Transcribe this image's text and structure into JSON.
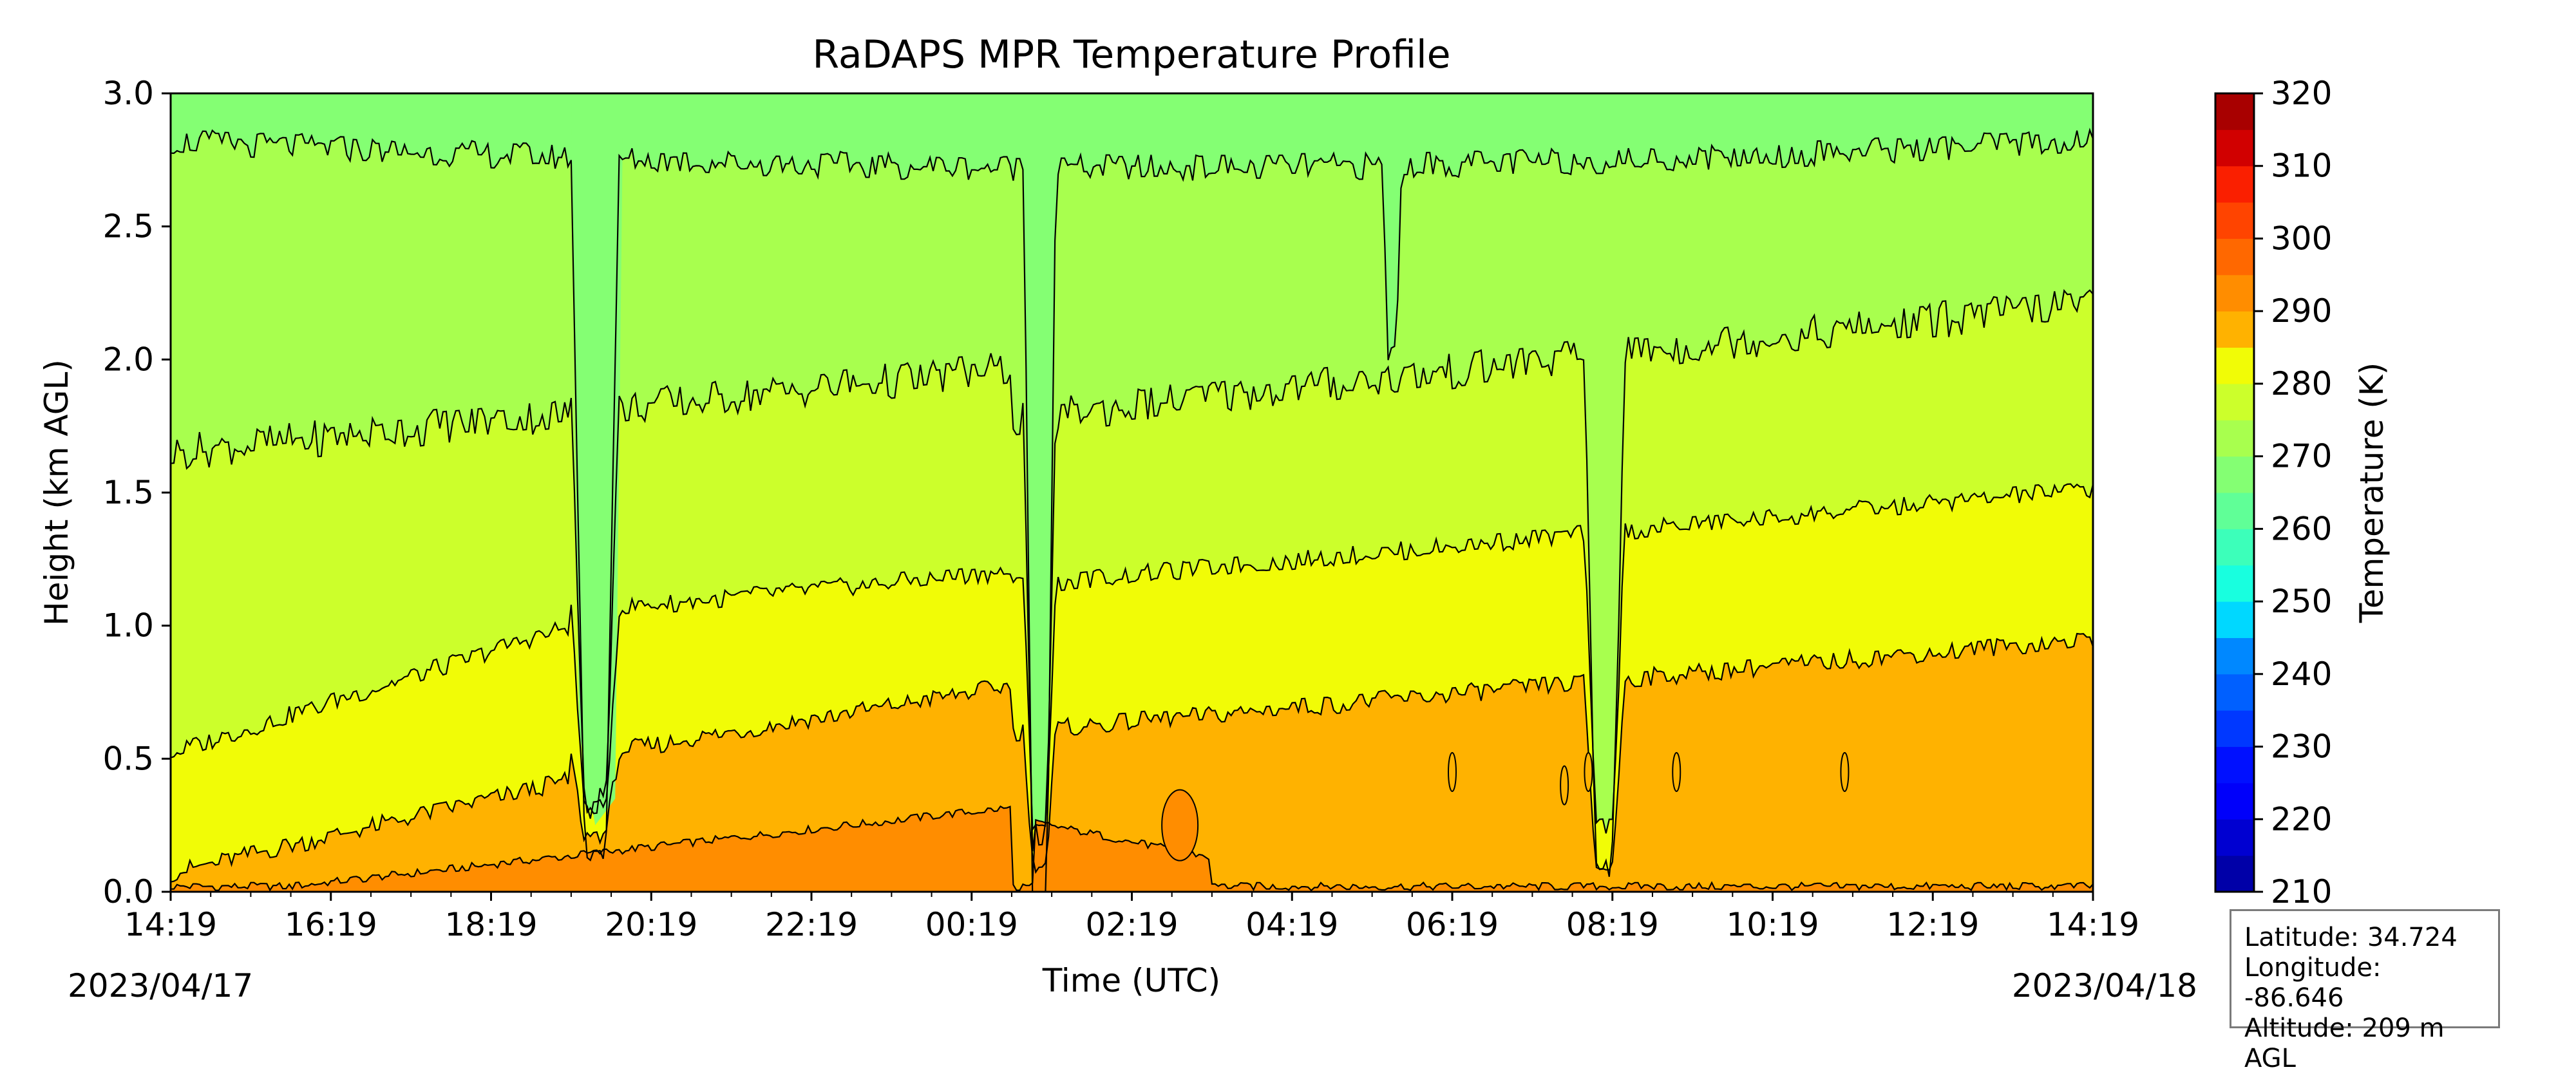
{
  "chart_data": {
    "type": "heatmap",
    "subtype": "filled-contour",
    "title": "RaDAPS MPR Temperature Profile",
    "xlabel": "Time (UTC)",
    "ylabel": "Height (km AGL)",
    "colorbar_label": "Temperature (K)",
    "x_ticks": [
      "14:19",
      "16:19",
      "18:19",
      "20:19",
      "22:19",
      "00:19",
      "02:19",
      "04:19",
      "06:19",
      "08:19",
      "10:19",
      "12:19",
      "14:19"
    ],
    "x_start_date": "2023/04/17",
    "x_end_date": "2023/04/18",
    "y_ticks": [
      "0.0",
      "0.5",
      "1.0",
      "1.5",
      "2.0",
      "2.5",
      "3.0"
    ],
    "ylim": [
      0,
      3.0
    ],
    "xlim_hours": [
      0,
      24
    ],
    "colorbar_ticks": [
      "210",
      "220",
      "230",
      "240",
      "250",
      "260",
      "270",
      "280",
      "290",
      "300",
      "310",
      "320"
    ],
    "colorbar_range": [
      210,
      320
    ],
    "contour_interval_k": 5,
    "colormap": "jet",
    "colormap_colors": [
      "#00007f",
      "#0000a8",
      "#0000d1",
      "#0000fa",
      "#0010ff",
      "#0038ff",
      "#0060ff",
      "#0088ff",
      "#00b0ff",
      "#00d8ff",
      "#18ffdf",
      "#3cffba",
      "#60ff97",
      "#84ff73",
      "#a8ff4e",
      "#ccff2b",
      "#f1fc06",
      "#ffd600",
      "#ffb200",
      "#ff8d00",
      "#ff6800",
      "#ff4400",
      "#fa1f00",
      "#d10000",
      "#a80000",
      "#7f0000"
    ],
    "temperature_bands": [
      {
        "range_k": [
          290,
          295
        ],
        "height_km": [
          0.0,
          0.3
        ],
        "note": "warmest surface layer in afternoon/evening of 2023/04/17"
      },
      {
        "range_k": [
          285,
          290
        ],
        "height_km": [
          0.0,
          0.95
        ],
        "note": "near-surface layer, deepening after 00:19"
      },
      {
        "range_k": [
          280,
          285
        ],
        "height_km": [
          0.05,
          1.5
        ]
      },
      {
        "range_k": [
          275,
          280
        ],
        "height_km": [
          0.5,
          2.2
        ]
      },
      {
        "range_k": [
          270,
          275
        ],
        "height_km": [
          1.6,
          3.0
        ]
      },
      {
        "range_k": [
          265,
          270
        ],
        "height_km": [
          2.7,
          3.0
        ]
      }
    ],
    "grid": false,
    "legend": "colorbar-right"
  },
  "info_box": {
    "latitude": "Latitude: 34.724",
    "longitude": "Longitude: -86.646",
    "altitude": "Altitude: 209 m AGL"
  }
}
